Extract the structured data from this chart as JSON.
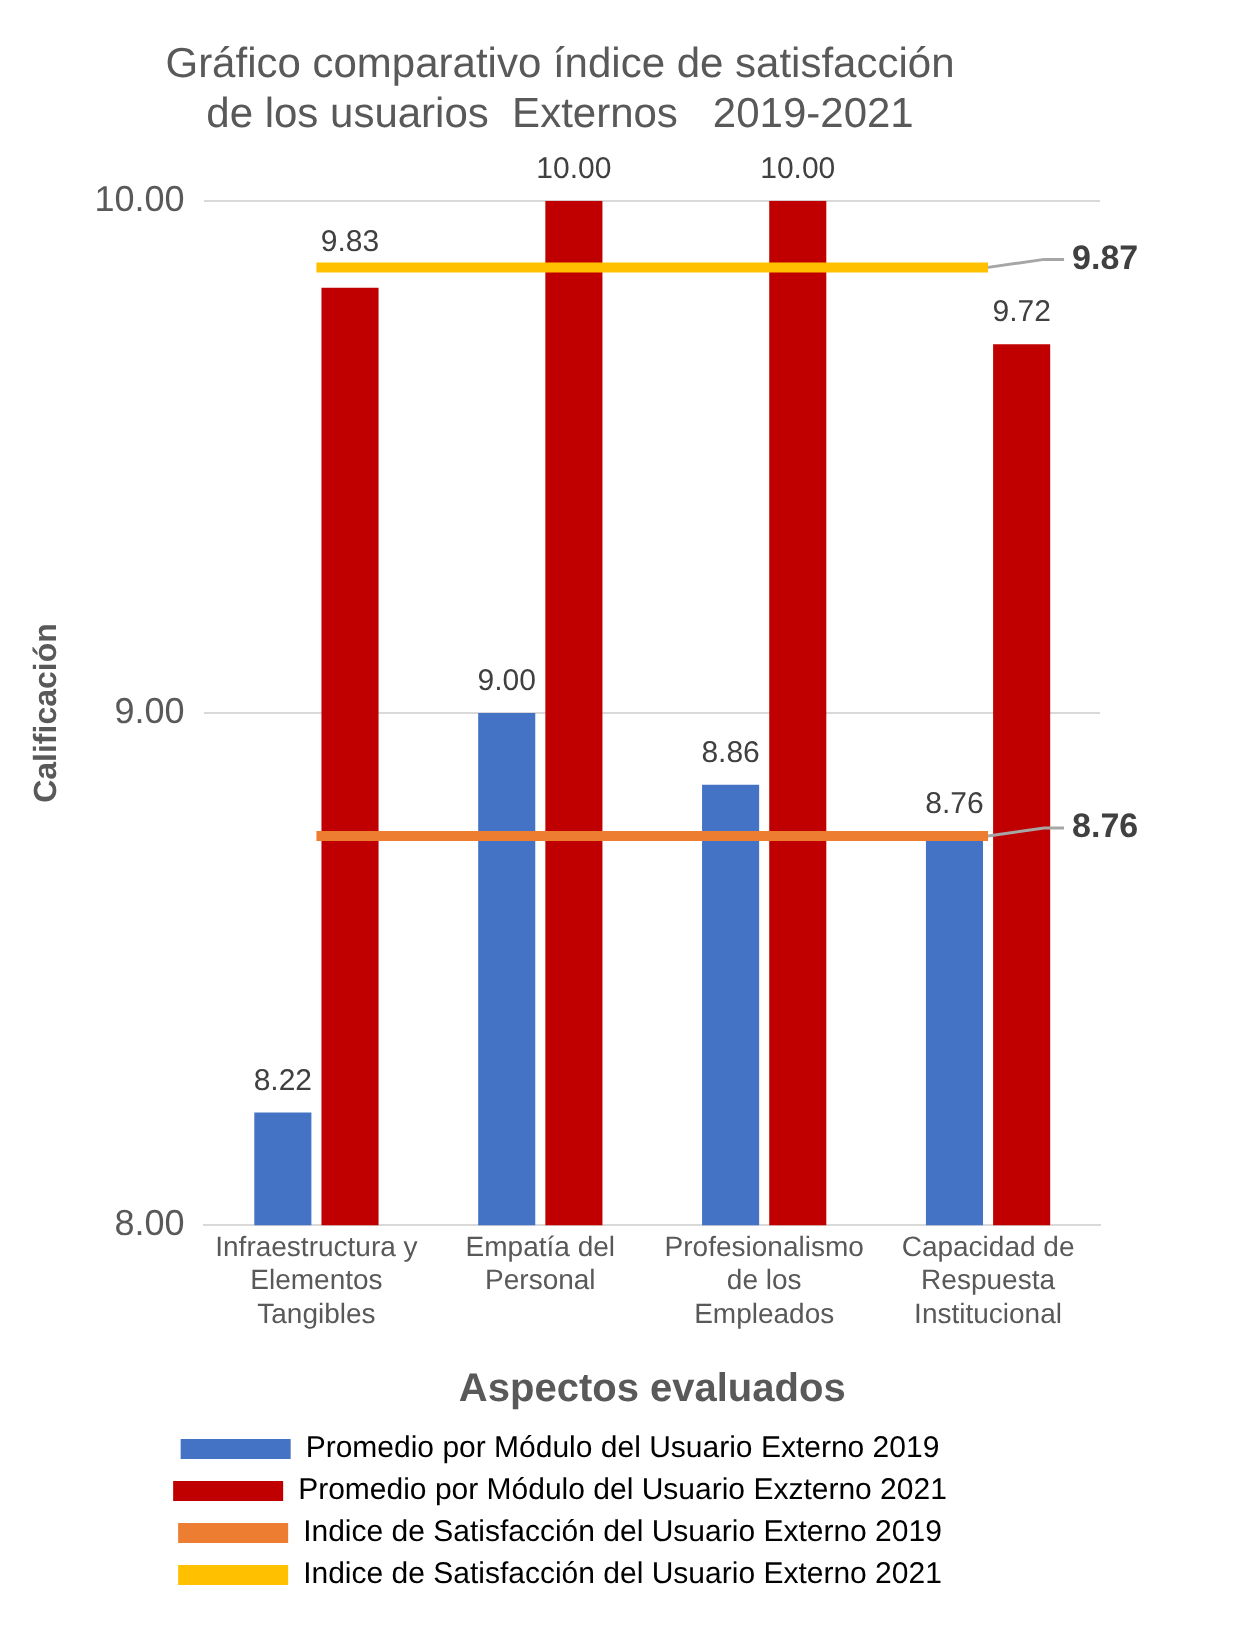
{
  "chart_data": {
    "type": "bar",
    "title": "Gráfico comparativo índice de satisfacción\nde los usuarios  Externos   2019-2021",
    "xlabel": "Aspectos evaluados",
    "ylabel": "Calificación",
    "categories": [
      "Infraestructura y\nElementos\nTangibles",
      "Empatía del\nPersonal",
      "Profesionalismo\nde los\nEmpleados",
      "Capacidad de\nRespuesta\nInstitucional"
    ],
    "series": [
      {
        "name": "Promedio por Módulo del Usuario Externo 2019",
        "color": "#4472c4",
        "values": [
          8.22,
          9.0,
          8.86,
          8.76
        ],
        "value_labels": [
          "8.22",
          "9.00",
          "8.86",
          "8.76"
        ]
      },
      {
        "name": "Promedio por Módulo del Usuario Exzterno 2021",
        "color": "#c00000",
        "values": [
          9.83,
          10.0,
          10.0,
          9.72
        ],
        "value_labels": [
          "9.83",
          "10.00",
          "10.00",
          "9.72"
        ]
      },
      {
        "name": "Indice de Satisfacción del Usuario Externo 2019",
        "type": "line",
        "color": "#ed7d31",
        "values": [
          8.76,
          8.76,
          8.76,
          8.76
        ],
        "value_labels": [
          null,
          null,
          null,
          "8.76"
        ]
      },
      {
        "name": "Indice de Satisfacción del Usuario Externo 2021",
        "type": "line",
        "color": "#ffc000",
        "values": [
          9.87,
          9.87,
          9.87,
          9.87
        ],
        "value_labels": [
          null,
          null,
          null,
          "9.87"
        ]
      }
    ],
    "ylim": [
      8,
      10
    ],
    "yticks": [
      {
        "value": 8,
        "label": "8.00"
      },
      {
        "value": 9,
        "label": "9.00"
      },
      {
        "value": 10,
        "label": "10.00"
      }
    ],
    "grid": "y",
    "legend": "bottom",
    "marker": "none",
    "line_style": "solid"
  }
}
